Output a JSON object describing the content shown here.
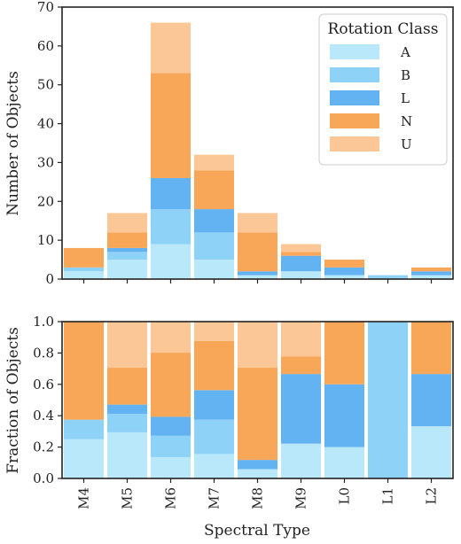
{
  "chart_data": [
    {
      "type": "bar",
      "stacked": true,
      "categories": [
        "M4",
        "M5",
        "M6",
        "M7",
        "M8",
        "M9",
        "L0",
        "L1",
        "L2"
      ],
      "ylabel": "Number of Objects",
      "ylim": [
        0,
        70
      ],
      "yticks": [
        0,
        10,
        20,
        30,
        40,
        50,
        60,
        70
      ],
      "legend": {
        "title": "Rotation Class",
        "position": "top-right"
      },
      "series": [
        {
          "name": "A",
          "color": "#b9e8fb",
          "values": [
            2,
            5,
            9,
            5,
            1,
            2,
            1,
            0,
            1
          ]
        },
        {
          "name": "B",
          "color": "#8fd2f7",
          "values": [
            1,
            2,
            9,
            7,
            0,
            0,
            0,
            1,
            0
          ]
        },
        {
          "name": "L",
          "color": "#63b3f2",
          "values": [
            0,
            1,
            8,
            6,
            1,
            4,
            2,
            0,
            1
          ]
        },
        {
          "name": "N",
          "color": "#f8a658",
          "values": [
            5,
            4,
            27,
            10,
            10,
            1,
            2,
            0,
            1
          ]
        },
        {
          "name": "U",
          "color": "#fbc796",
          "values": [
            0,
            5,
            13,
            4,
            5,
            2,
            0,
            0,
            0
          ]
        }
      ]
    },
    {
      "type": "bar",
      "stacked": true,
      "categories": [
        "M4",
        "M5",
        "M6",
        "M7",
        "M8",
        "M9",
        "L0",
        "L1",
        "L2"
      ],
      "xlabel": "Spectral Type",
      "ylabel": "Fraction of Objects",
      "ylim": [
        0,
        1.0
      ],
      "yticks": [
        0.0,
        0.2,
        0.4,
        0.6,
        0.8,
        1.0
      ],
      "series": [
        {
          "name": "A",
          "color": "#b9e8fb",
          "values": [
            0.25,
            0.294,
            0.136,
            0.156,
            0.059,
            0.222,
            0.2,
            0.0,
            0.333
          ]
        },
        {
          "name": "B",
          "color": "#8fd2f7",
          "values": [
            0.125,
            0.118,
            0.136,
            0.219,
            0.0,
            0.0,
            0.0,
            1.0,
            0.0
          ]
        },
        {
          "name": "L",
          "color": "#63b3f2",
          "values": [
            0.0,
            0.059,
            0.121,
            0.188,
            0.059,
            0.444,
            0.4,
            0.0,
            0.333
          ]
        },
        {
          "name": "N",
          "color": "#f8a658",
          "values": [
            0.625,
            0.235,
            0.409,
            0.313,
            0.588,
            0.111,
            0.4,
            0.0,
            0.333
          ]
        },
        {
          "name": "U",
          "color": "#fbc796",
          "values": [
            0.0,
            0.294,
            0.197,
            0.125,
            0.294,
            0.222,
            0.0,
            0.0,
            0.0
          ]
        }
      ]
    }
  ]
}
